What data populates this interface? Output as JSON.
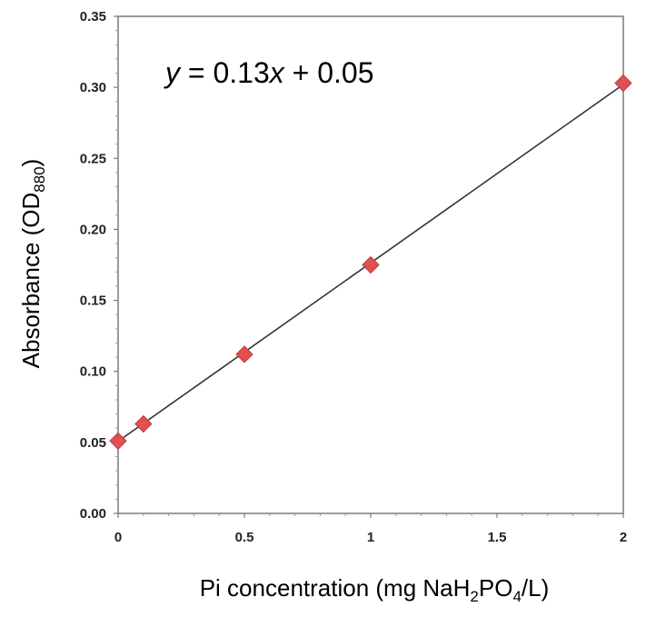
{
  "chart_data": {
    "type": "scatter",
    "title": "",
    "xlabel": {
      "parts": [
        "Pi concentration (mg NaH",
        "2",
        "PO",
        "4",
        "/L)"
      ]
    },
    "ylabel": {
      "parts": [
        "Absorbance (OD",
        "880",
        ")"
      ]
    },
    "xlim": [
      0,
      2
    ],
    "ylim": [
      0,
      0.35
    ],
    "x_ticks": [
      0,
      0.5,
      1,
      1.5,
      2
    ],
    "x_tick_labels": [
      "0",
      "0.5",
      "1",
      "1.5",
      "2"
    ],
    "y_ticks": [
      0,
      0.05,
      0.1,
      0.15,
      0.2,
      0.25,
      0.3,
      0.35
    ],
    "y_tick_labels": [
      "0.00",
      "0.05",
      "0.10",
      "0.15",
      "0.20",
      "0.25",
      "0.30",
      "0.35"
    ],
    "grid": false,
    "series": [
      {
        "x": [
          0,
          0.1,
          0.5,
          1,
          2
        ],
        "y": [
          0.051,
          0.063,
          0.112,
          0.175,
          0.303
        ],
        "color": "#e05050",
        "marker": "diamond"
      }
    ],
    "trendline": {
      "slope": 0.1256,
      "intercept": 0.0508,
      "color": "#333333",
      "equation": {
        "y": "y",
        "eq_mid": " = 0.13",
        "x": "x",
        "eq_end": " + 0.05"
      }
    }
  }
}
